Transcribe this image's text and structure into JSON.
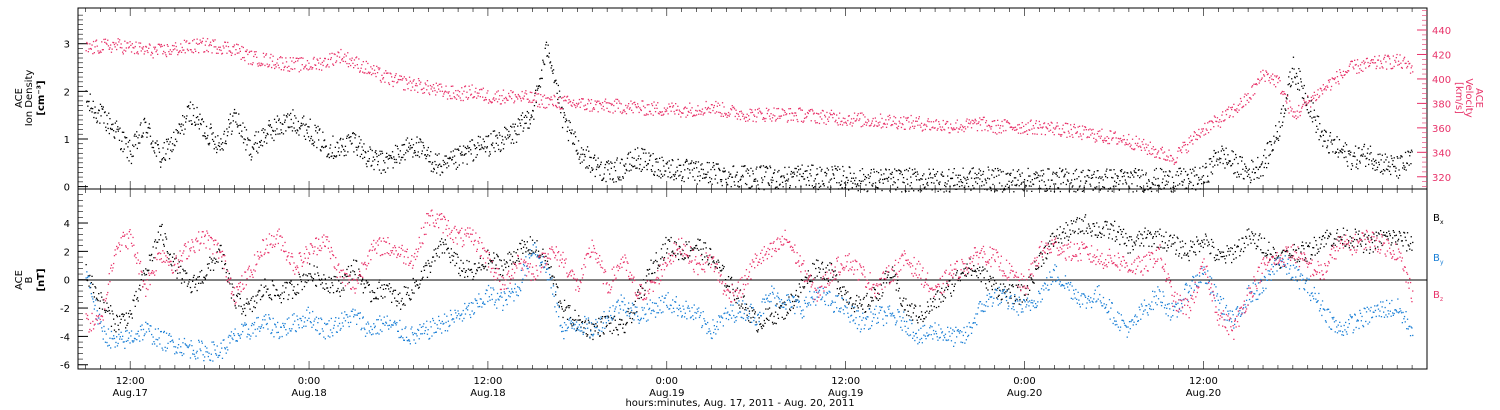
{
  "chart_data": [
    {
      "type": "scatter",
      "panel": "ion-density-velocity",
      "x_units": "hours since Aug.17 00:00 (UT)",
      "left_axis": {
        "label_lines": [
          "ACE",
          "Ion Density",
          "[cm⁻³]"
        ],
        "ylim": [
          -0.05,
          3.75
        ],
        "ticks": [
          0,
          1,
          2,
          3
        ],
        "color": "#000000"
      },
      "right_axis": {
        "label_lines": [
          "ACE",
          "Velocity",
          "[km/s]"
        ],
        "ylim": [
          310,
          458
        ],
        "ticks": [
          320,
          340,
          360,
          380,
          400,
          420,
          440
        ],
        "color": "#e8336a"
      },
      "series": [
        {
          "name": "",
          "axis": "left",
          "color": "#000000",
          "x": [
            9,
            10,
            11,
            12,
            13,
            14,
            15,
            16,
            17,
            18,
            19,
            20,
            21,
            22,
            23,
            24,
            25,
            26,
            27,
            28,
            29,
            30,
            31,
            32,
            33,
            34,
            35,
            36,
            37,
            38,
            39,
            40,
            41,
            42,
            43,
            44,
            45,
            46,
            47,
            48,
            49,
            50,
            51,
            52,
            53,
            54,
            55,
            56,
            57,
            58,
            59,
            60,
            61,
            62,
            63,
            64,
            65,
            66,
            67,
            68,
            69,
            70,
            71,
            72,
            73,
            74,
            75,
            76,
            77,
            78,
            79,
            80,
            81,
            82,
            83,
            84,
            85,
            86,
            87,
            88,
            89,
            90,
            91,
            92,
            93,
            94,
            95,
            96,
            97,
            98
          ],
          "y": [
            1.8,
            1.5,
            1.2,
            0.7,
            1.3,
            0.6,
            1.0,
            1.6,
            1.2,
            0.9,
            1.5,
            0.8,
            1.1,
            1.3,
            1.4,
            1.2,
            0.9,
            0.8,
            1.0,
            0.6,
            0.5,
            0.7,
            0.9,
            0.6,
            0.4,
            0.6,
            0.8,
            0.9,
            1.0,
            1.2,
            1.6,
            3.0,
            1.4,
            0.8,
            0.5,
            0.3,
            0.4,
            0.6,
            0.5,
            0.4,
            0.35,
            0.3,
            0.3,
            0.25,
            0.25,
            0.2,
            0.2,
            0.2,
            0.25,
            0.2,
            0.2,
            0.2,
            0.15,
            0.15,
            0.15,
            0.15,
            0.15,
            0.15,
            0.15,
            0.15,
            0.2,
            0.15,
            0.15,
            0.15,
            0.15,
            0.15,
            0.15,
            0.15,
            0.15,
            0.15,
            0.15,
            0.15,
            0.15,
            0.15,
            0.15,
            0.2,
            0.7,
            0.5,
            0.3,
            0.5,
            1.2,
            2.5,
            1.8,
            1.0,
            0.8,
            0.6,
            0.7,
            0.5,
            0.4,
            0.6
          ]
        },
        {
          "name": "",
          "axis": "right",
          "color": "#e8336a",
          "x": [
            9,
            10,
            11,
            12,
            13,
            14,
            15,
            16,
            17,
            18,
            19,
            20,
            21,
            22,
            23,
            24,
            25,
            26,
            27,
            28,
            29,
            30,
            31,
            32,
            33,
            34,
            35,
            36,
            37,
            38,
            39,
            40,
            41,
            42,
            43,
            44,
            45,
            46,
            47,
            48,
            49,
            50,
            51,
            52,
            53,
            54,
            55,
            56,
            57,
            58,
            59,
            60,
            61,
            62,
            63,
            64,
            65,
            66,
            67,
            68,
            69,
            70,
            71,
            72,
            73,
            74,
            75,
            76,
            77,
            78,
            79,
            80,
            81,
            82,
            83,
            84,
            85,
            86,
            87,
            88,
            89,
            90,
            91,
            92,
            93,
            94,
            95,
            96,
            97,
            98
          ],
          "y": [
            425,
            427,
            428,
            426,
            424,
            423,
            425,
            427,
            428,
            427,
            425,
            418,
            416,
            414,
            412,
            412,
            414,
            420,
            414,
            408,
            402,
            398,
            396,
            393,
            390,
            388,
            390,
            386,
            386,
            386,
            384,
            382,
            381,
            380,
            379,
            378,
            378,
            377,
            376,
            376,
            375,
            376,
            378,
            374,
            372,
            371,
            372,
            371,
            371,
            370,
            369,
            368,
            367,
            366,
            366,
            365,
            364,
            363,
            362,
            362,
            364,
            361,
            362,
            361,
            361,
            360,
            358,
            356,
            354,
            352,
            350,
            345,
            340,
            336,
            348,
            360,
            366,
            375,
            385,
            405,
            398,
            370,
            382,
            392,
            402,
            410,
            412,
            414,
            415,
            410
          ]
        }
      ]
    },
    {
      "type": "scatter",
      "panel": "magnetic-field",
      "x_units": "hours since Aug.17 00:00 (UT)",
      "y_axis": {
        "label_lines": [
          "ACE",
          "B",
          "[nT]"
        ],
        "ylim": [
          -6.3,
          6.4
        ],
        "ticks": [
          -6,
          -4,
          -2,
          0,
          2,
          4
        ]
      },
      "series": [
        {
          "name": "B",
          "sub": "x",
          "color": "#000000",
          "x": [
            9,
            10,
            11,
            12,
            13,
            14,
            15,
            16,
            17,
            18,
            19,
            20,
            21,
            22,
            23,
            24,
            25,
            26,
            27,
            28,
            29,
            30,
            31,
            32,
            33,
            34,
            35,
            36,
            37,
            38,
            39,
            40,
            41,
            42,
            43,
            44,
            45,
            46,
            47,
            48,
            49,
            50,
            51,
            52,
            53,
            54,
            55,
            56,
            57,
            58,
            59,
            60,
            61,
            62,
            63,
            64,
            65,
            66,
            67,
            68,
            69,
            70,
            71,
            72,
            73,
            74,
            75,
            76,
            77,
            78,
            79,
            80,
            81,
            82,
            83,
            84,
            85,
            86,
            87,
            88,
            89,
            90,
            91,
            92,
            93,
            94,
            95,
            96,
            97,
            98
          ],
          "y": [
            0.5,
            -1.5,
            -3.0,
            -2.5,
            0.5,
            3.5,
            1.0,
            -0.5,
            0.5,
            2.0,
            -1.5,
            -2.0,
            -0.5,
            -1.0,
            -0.5,
            0.5,
            0.0,
            -0.5,
            1.0,
            -1.0,
            -0.5,
            -1.5,
            -0.5,
            1.0,
            2.5,
            1.0,
            0.5,
            1.5,
            1.0,
            2.0,
            2.5,
            1.0,
            -2.0,
            -3.0,
            -3.5,
            -3.0,
            -3.5,
            -1.5,
            1.0,
            2.5,
            2.0,
            2.5,
            1.5,
            0.0,
            -1.5,
            -3.0,
            -2.5,
            -2.0,
            -0.5,
            1.0,
            0.5,
            -1.0,
            -2.0,
            -1.0,
            0.5,
            -2.0,
            -2.5,
            -1.5,
            -0.5,
            1.0,
            0.5,
            -0.5,
            -1.0,
            -1.0,
            1.5,
            3.0,
            3.5,
            4.0,
            3.5,
            3.5,
            2.5,
            3.0,
            3.0,
            2.5,
            2.0,
            3.0,
            1.5,
            2.0,
            3.0,
            2.5,
            1.5,
            2.0,
            2.0,
            3.0,
            3.0,
            3.0,
            2.5,
            3.0,
            3.0,
            2.5
          ]
        },
        {
          "name": "B",
          "sub": "y",
          "color": "#1a7fd6",
          "x": [
            9,
            10,
            11,
            12,
            13,
            14,
            15,
            16,
            17,
            18,
            19,
            20,
            21,
            22,
            23,
            24,
            25,
            26,
            27,
            28,
            29,
            30,
            31,
            32,
            33,
            34,
            35,
            36,
            37,
            38,
            39,
            40,
            41,
            42,
            43,
            44,
            45,
            46,
            47,
            48,
            49,
            50,
            51,
            52,
            53,
            54,
            55,
            56,
            57,
            58,
            59,
            60,
            61,
            62,
            63,
            64,
            65,
            66,
            67,
            68,
            69,
            70,
            71,
            72,
            73,
            74,
            75,
            76,
            77,
            78,
            79,
            80,
            81,
            82,
            83,
            84,
            85,
            86,
            87,
            88,
            89,
            90,
            91,
            92,
            93,
            94,
            95,
            96,
            97,
            98
          ],
          "y": [
            0.8,
            -3.5,
            -4.5,
            -4.0,
            -3.5,
            -4.2,
            -4.5,
            -4.8,
            -5.0,
            -5.0,
            -4.0,
            -3.5,
            -3.0,
            -3.5,
            -3.0,
            -2.5,
            -3.5,
            -3.0,
            -2.5,
            -3.5,
            -3.0,
            -3.5,
            -4.0,
            -3.5,
            -3.0,
            -2.5,
            -2.0,
            -1.0,
            -1.5,
            -0.5,
            2.5,
            0.5,
            -3.5,
            -3.0,
            -3.5,
            -2.5,
            -1.5,
            -2.5,
            -2.0,
            -1.5,
            -2.0,
            -2.5,
            -3.5,
            -2.5,
            -2.0,
            -2.5,
            -1.0,
            -1.5,
            -2.0,
            -1.0,
            -1.5,
            -2.0,
            -3.0,
            -2.5,
            -2.5,
            -3.0,
            -4.0,
            -3.5,
            -4.0,
            -4.0,
            -2.0,
            -1.0,
            -1.5,
            -2.0,
            -1.0,
            0.5,
            -0.5,
            -1.5,
            -1.0,
            -2.5,
            -3.5,
            -2.0,
            -1.0,
            -2.5,
            -0.5,
            0.5,
            -1.5,
            -3.0,
            -1.0,
            -0.5,
            1.5,
            0.5,
            -0.5,
            -2.0,
            -3.5,
            -3.0,
            -2.5,
            -2.0,
            -2.0,
            -3.5
          ]
        },
        {
          "name": "B",
          "sub": "z",
          "color": "#e8336a",
          "x": [
            9,
            10,
            11,
            12,
            13,
            14,
            15,
            16,
            17,
            18,
            19,
            20,
            21,
            22,
            23,
            24,
            25,
            26,
            27,
            28,
            29,
            30,
            31,
            32,
            33,
            34,
            35,
            36,
            37,
            38,
            39,
            40,
            41,
            42,
            43,
            44,
            45,
            46,
            47,
            48,
            49,
            50,
            51,
            52,
            53,
            54,
            55,
            56,
            57,
            58,
            59,
            60,
            61,
            62,
            63,
            64,
            65,
            66,
            67,
            68,
            69,
            70,
            71,
            72,
            73,
            74,
            75,
            76,
            77,
            78,
            79,
            80,
            81,
            82,
            83,
            84,
            85,
            86,
            87,
            88,
            89,
            90,
            91,
            92,
            93,
            94,
            95,
            96,
            97,
            98
          ],
          "y": [
            -3.0,
            -3.0,
            2.5,
            3.0,
            -0.5,
            2.0,
            1.0,
            2.5,
            3.0,
            2.0,
            -1.0,
            0.5,
            2.5,
            3.0,
            1.0,
            2.0,
            3.0,
            0.5,
            -0.5,
            2.0,
            2.5,
            2.0,
            1.5,
            4.5,
            4.0,
            3.0,
            3.0,
            1.5,
            -0.5,
            1.5,
            0.5,
            2.0,
            1.5,
            -0.5,
            2.5,
            -0.5,
            1.5,
            -1.0,
            -0.5,
            1.5,
            2.5,
            1.0,
            1.5,
            -1.0,
            -0.5,
            1.5,
            2.0,
            3.0,
            1.0,
            -1.0,
            0.5,
            1.5,
            0.5,
            -0.5,
            0.5,
            1.5,
            0.5,
            -1.0,
            0.5,
            1.0,
            2.0,
            1.5,
            0.5,
            -0.5,
            2.0,
            2.5,
            2.0,
            2.0,
            1.5,
            1.5,
            1.0,
            1.0,
            2.0,
            -1.5,
            -2.0,
            1.0,
            -2.5,
            -3.5,
            -1.0,
            1.0,
            1.5,
            2.0,
            1.0,
            0.5,
            2.5,
            2.5,
            3.0,
            2.5,
            2.0,
            -1.0
          ]
        }
      ]
    }
  ],
  "x_axis": {
    "ticks": [
      {
        "t": 12,
        "time": "12:00",
        "date": "Aug.17"
      },
      {
        "t": 24,
        "time": "0:00",
        "date": "Aug.18"
      },
      {
        "t": 36,
        "time": "12:00",
        "date": "Aug.18"
      },
      {
        "t": 48,
        "time": "0:00",
        "date": "Aug.19"
      },
      {
        "t": 60,
        "time": "12:00",
        "date": "Aug.19"
      },
      {
        "t": 72,
        "time": "0:00",
        "date": "Aug.20"
      },
      {
        "t": 84,
        "time": "12:00",
        "date": "Aug.20"
      }
    ],
    "xlim": [
      8.5,
      99
    ],
    "label": "hours:minutes, Aug. 17, 2011 - Aug. 20, 2011"
  }
}
